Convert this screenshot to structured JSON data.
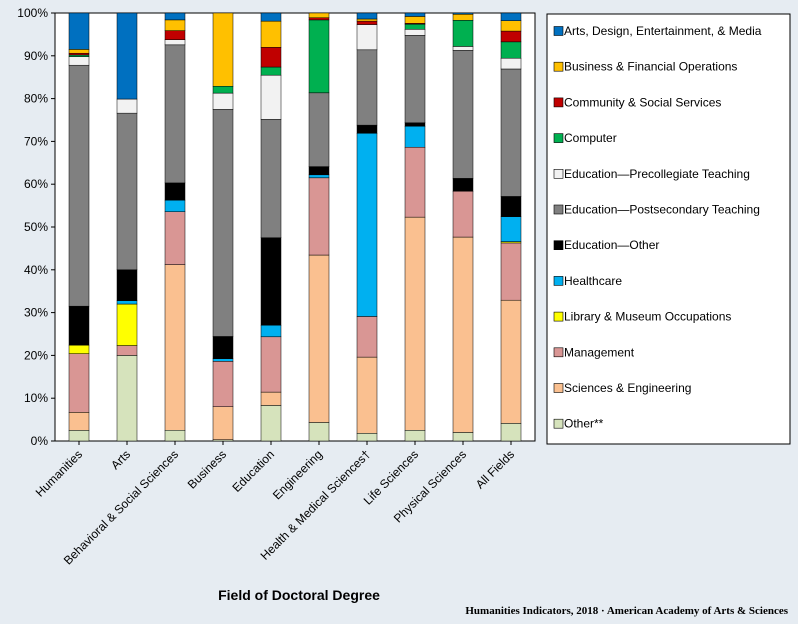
{
  "chart_data": {
    "type": "bar",
    "stacked": true,
    "normalized": true,
    "xlabel": "Field of Doctoral Degree",
    "ylabel": "",
    "ylim": [
      0,
      100
    ],
    "yticks": [
      "0%",
      "10%",
      "20%",
      "30%",
      "40%",
      "50%",
      "60%",
      "70%",
      "80%",
      "90%",
      "100%"
    ],
    "grid": false,
    "legend_position": "right",
    "categories": [
      "Humanities",
      "Arts",
      "Behavioral & Social Sciences",
      "Business",
      "Education",
      "Engineering",
      "Health & Medical Sciences†",
      "Life Sciences",
      "Physical Sciences",
      "All Fields"
    ],
    "series": [
      {
        "name": "Other**",
        "color": "#d6e3bc",
        "values": [
          2.5,
          20.0,
          2.5,
          0.3,
          8.3,
          4.3,
          1.8,
          2.5,
          2.0,
          4.1
        ]
      },
      {
        "name": "Sciences & Engineering",
        "color": "#fac090",
        "values": [
          4.2,
          0.0,
          38.5,
          7.7,
          3.1,
          38.8,
          17.8,
          49.7,
          45.6,
          28.6
        ]
      },
      {
        "name": "Management",
        "color": "#d99694",
        "values": [
          13.7,
          2.3,
          12.3,
          10.6,
          12.9,
          17.9,
          9.5,
          16.3,
          10.7,
          13.3
        ]
      },
      {
        "name": "Library & Museum Occupations",
        "color": "#ffff00",
        "values": [
          2.0,
          9.7,
          0.0,
          0.0,
          0.0,
          0.0,
          0.0,
          0.0,
          0.0,
          0.3
        ]
      },
      {
        "name": "Healthcare",
        "color": "#00b0f0",
        "values": [
          0.0,
          0.8,
          2.7,
          0.6,
          2.7,
          0.7,
          42.8,
          4.9,
          0.0,
          5.8
        ]
      },
      {
        "name": "Education—Other",
        "color": "#000000",
        "values": [
          9.1,
          7.2,
          4.0,
          5.2,
          20.4,
          1.9,
          1.9,
          0.8,
          3.0,
          4.7
        ]
      },
      {
        "name": "Education—Postsecondary Teaching",
        "color": "#808080",
        "values": [
          56.3,
          36.6,
          32.1,
          53.0,
          27.6,
          17.1,
          17.6,
          20.4,
          29.9,
          29.6
        ]
      },
      {
        "name": "Education—Precollegiate Teaching",
        "color": "#f2f2f2",
        "values": [
          2.0,
          3.3,
          1.2,
          3.8,
          10.3,
          0.0,
          5.9,
          1.4,
          0.9,
          2.5
        ]
      },
      {
        "name": "Computer",
        "color": "#00b050",
        "values": [
          0.4,
          0.0,
          0.0,
          1.6,
          1.9,
          16.9,
          0.0,
          1.2,
          6.1,
          3.8
        ]
      },
      {
        "name": "Community & Social Services",
        "color": "#c00000",
        "values": [
          0.4,
          0.0,
          2.1,
          0.0,
          4.6,
          0.5,
          0.8,
          0.2,
          0.0,
          2.5
        ]
      },
      {
        "name": "Business & Financial Operations",
        "color": "#ffc000",
        "values": [
          0.9,
          0.0,
          2.5,
          17.1,
          6.1,
          1.1,
          0.5,
          1.6,
          1.4,
          2.4
        ]
      },
      {
        "name": "Arts, Design, Entertainment, & Media",
        "color": "#0070c0",
        "values": [
          8.5,
          20.1,
          1.6,
          0.0,
          1.9,
          0.0,
          1.4,
          0.8,
          0.3,
          1.8
        ]
      }
    ]
  },
  "credit": "Humanities Indicators, 2018 · American Academy of Arts & Sciences"
}
